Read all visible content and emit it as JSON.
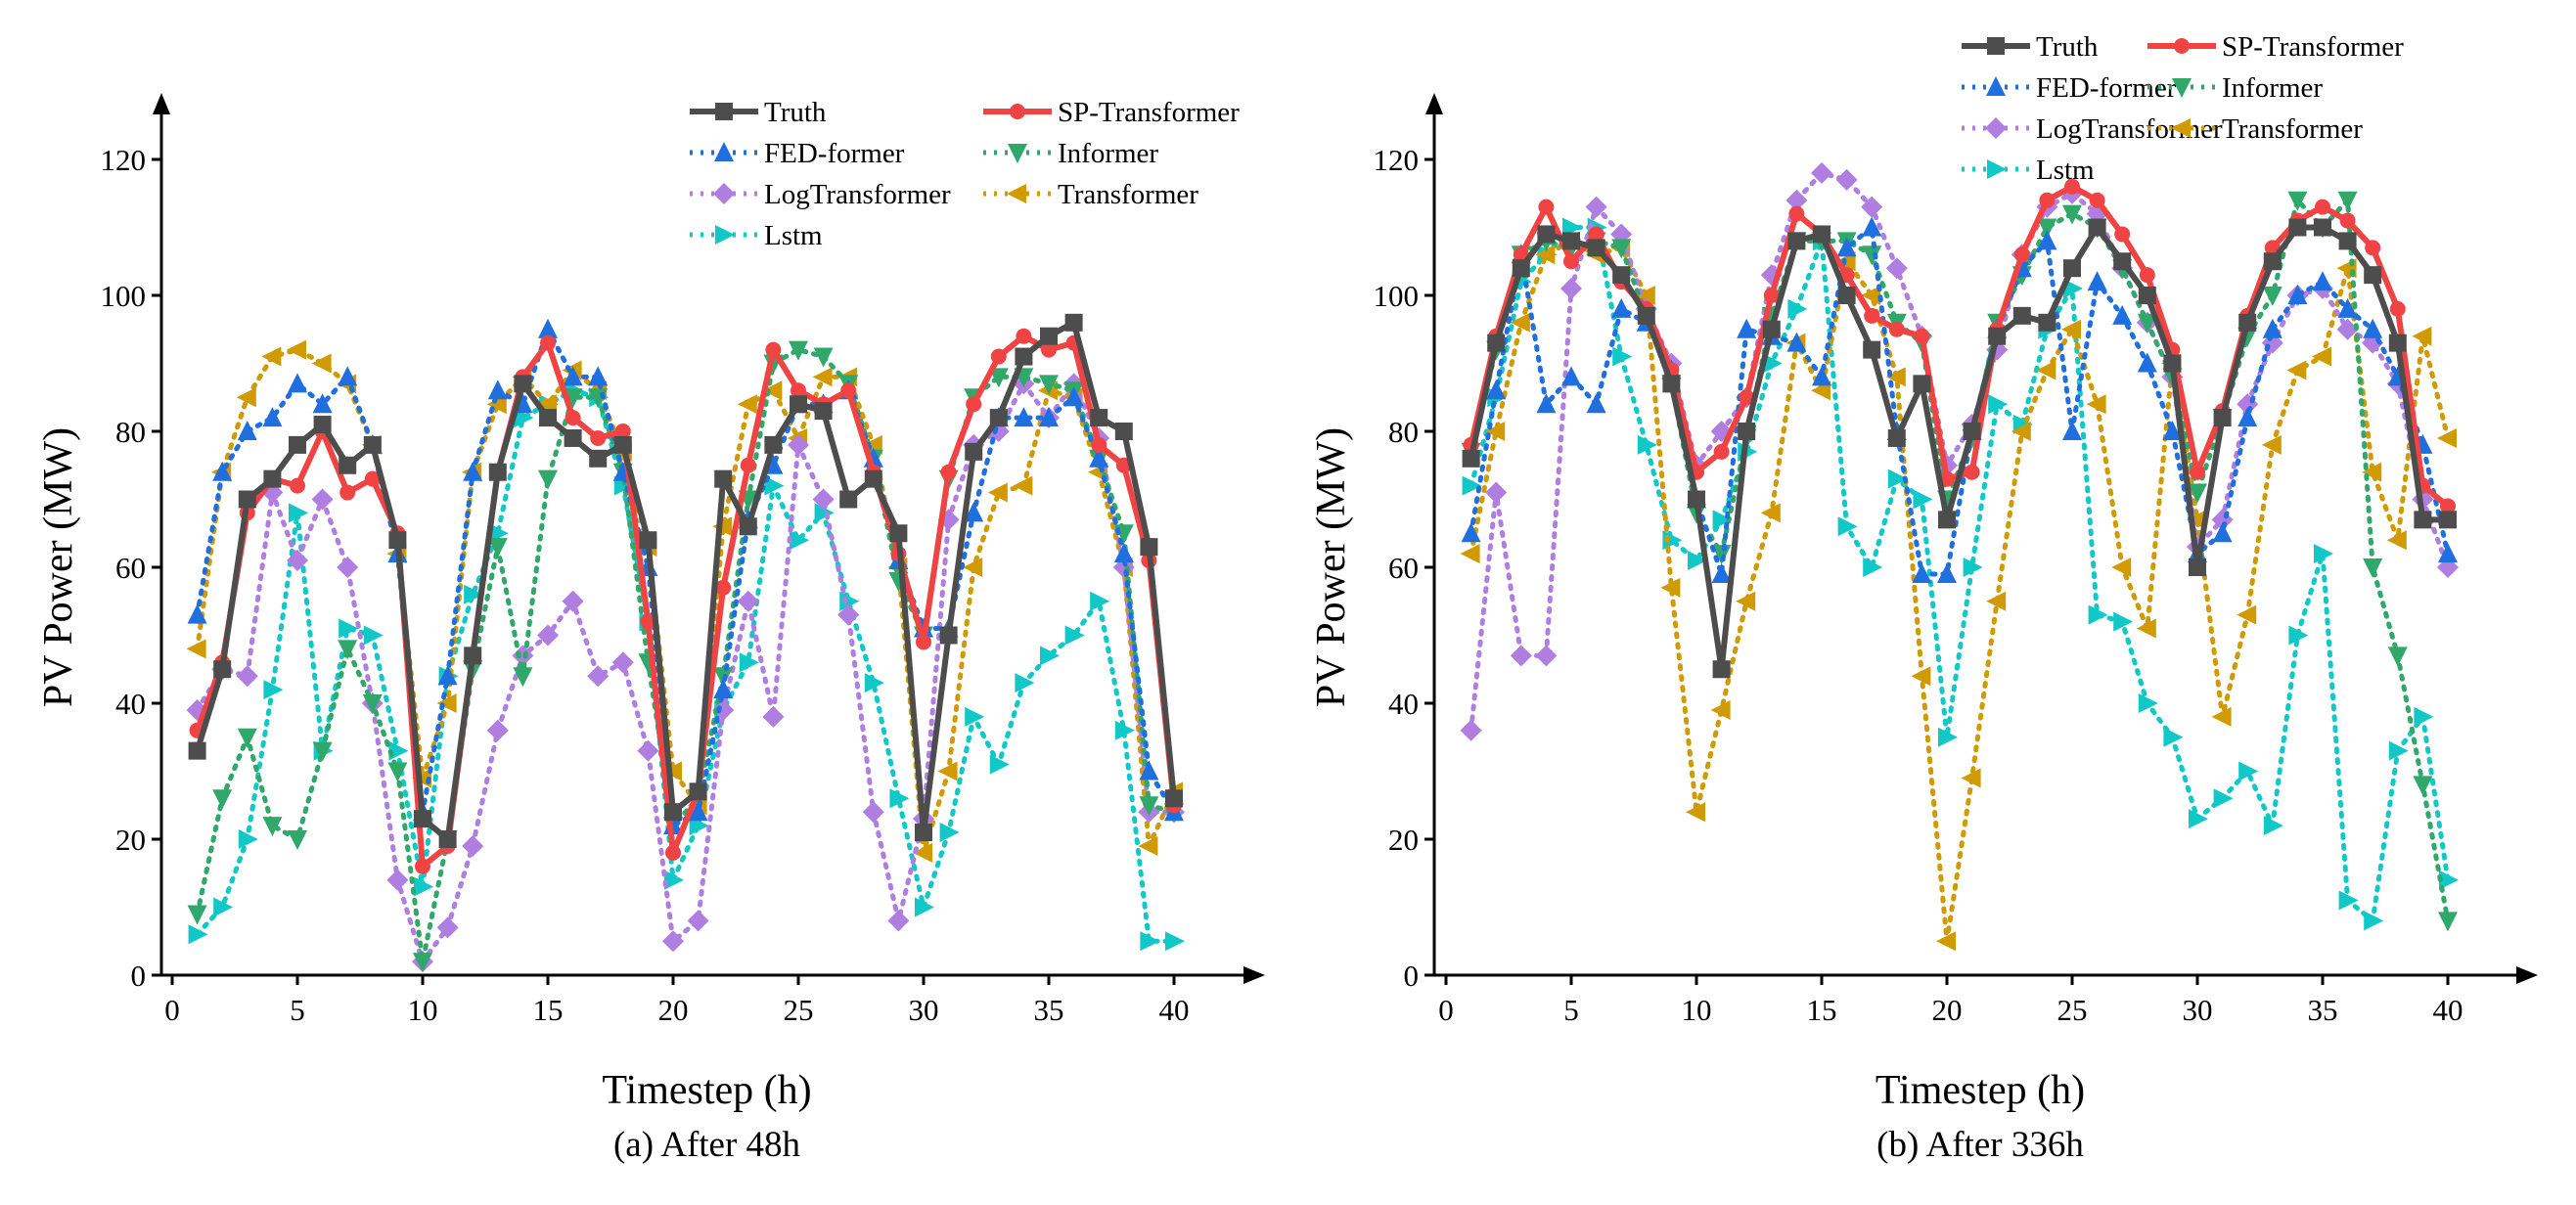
{
  "colors": {
    "Truth": "#4d4d4d",
    "SP-Transformer": "#f04444",
    "FED-former": "#1f6fdf",
    "Informer": "#2fa86a",
    "LogTransformer": "#b07de0",
    "Transformer": "#d09a00",
    "Lstm": "#10c8c8"
  },
  "chart_data": [
    {
      "type": "line",
      "title": "(a) After 48h",
      "xlabel": "Timestep (h)",
      "ylabel": "PV Power (MW)",
      "xlim": [
        0,
        40
      ],
      "ylim": [
        0,
        120
      ],
      "xticks": [
        0,
        5,
        10,
        15,
        20,
        25,
        30,
        35,
        40
      ],
      "yticks": [
        0,
        20,
        40,
        60,
        80,
        100,
        120
      ],
      "grid": false,
      "legend": "top-right",
      "legend_entries": [
        "Truth",
        "SP-Transformer",
        "FED-former",
        "Informer",
        "LogTransformer",
        "Transformer",
        "Lstm"
      ],
      "x": [
        1,
        2,
        3,
        4,
        5,
        6,
        7,
        8,
        9,
        10,
        11,
        12,
        13,
        14,
        15,
        16,
        17,
        18,
        19,
        20,
        21,
        22,
        23,
        24,
        25,
        26,
        27,
        28,
        29,
        30,
        31,
        32,
        33,
        34,
        35,
        36,
        37,
        38,
        39,
        40
      ],
      "series": [
        {
          "name": "Truth",
          "values": [
            33,
            45,
            70,
            73,
            78,
            81,
            75,
            78,
            64,
            23,
            20,
            47,
            74,
            87,
            82,
            79,
            76,
            78,
            64,
            24,
            27,
            73,
            66,
            78,
            84,
            83,
            70,
            73,
            65,
            21,
            50,
            77,
            82,
            91,
            94,
            96,
            82,
            80,
            63,
            26
          ]
        },
        {
          "name": "SP-Transformer",
          "values": [
            36,
            46,
            68,
            73,
            72,
            80,
            71,
            73,
            65,
            16,
            19,
            47,
            74,
            88,
            93,
            82,
            79,
            80,
            52,
            18,
            27,
            57,
            75,
            92,
            86,
            84,
            86,
            74,
            62,
            49,
            74,
            84,
            91,
            94,
            92,
            93,
            78,
            75,
            61,
            25
          ]
        },
        {
          "name": "FED-former",
          "values": [
            53,
            74,
            80,
            82,
            87,
            84,
            88,
            78,
            62,
            24,
            44,
            74,
            86,
            84,
            95,
            88,
            88,
            74,
            60,
            22,
            24,
            42,
            67,
            75,
            84,
            84,
            86,
            76,
            61,
            51,
            51,
            68,
            82,
            82,
            82,
            85,
            76,
            62,
            30,
            24
          ]
        },
        {
          "name": "Informer",
          "values": [
            9,
            26,
            35,
            22,
            20,
            33,
            48,
            40,
            30,
            2,
            20,
            45,
            63,
            44,
            73,
            85,
            85,
            74,
            46,
            22,
            26,
            44,
            70,
            90,
            92,
            91,
            87,
            76,
            58,
            50,
            73,
            85,
            88,
            88,
            87,
            86,
            76,
            65,
            25,
            24
          ]
        },
        {
          "name": "LogTransformer",
          "values": [
            39,
            45,
            44,
            71,
            61,
            70,
            60,
            40,
            14,
            2,
            7,
            19,
            36,
            47,
            50,
            55,
            44,
            46,
            33,
            5,
            8,
            39,
            55,
            38,
            78,
            70,
            53,
            24,
            8,
            23,
            67,
            78,
            80,
            87,
            82,
            87,
            79,
            60,
            24,
            24
          ]
        },
        {
          "name": "Transformer",
          "values": [
            48,
            74,
            85,
            91,
            92,
            90,
            87,
            78,
            62,
            29,
            40,
            74,
            84,
            88,
            84,
            89,
            86,
            77,
            63,
            30,
            25,
            66,
            84,
            86,
            79,
            88,
            88,
            78,
            60,
            18,
            30,
            60,
            71,
            72,
            86,
            85,
            74,
            60,
            19,
            27
          ]
        },
        {
          "name": "Lstm",
          "values": [
            6,
            10,
            20,
            42,
            68,
            33,
            51,
            50,
            33,
            13,
            44,
            56,
            65,
            82,
            84,
            86,
            85,
            72,
            52,
            14,
            22,
            39,
            46,
            72,
            64,
            68,
            55,
            43,
            26,
            10,
            21,
            38,
            31,
            43,
            47,
            50,
            55,
            36,
            5,
            5
          ]
        }
      ]
    },
    {
      "type": "line",
      "title": "(b) After 336h",
      "xlabel": "Timestep (h)",
      "ylabel": "PV Power (MW)",
      "xlim": [
        0,
        40
      ],
      "ylim": [
        0,
        120
      ],
      "xticks": [
        0,
        5,
        10,
        15,
        20,
        25,
        30,
        35,
        40
      ],
      "yticks": [
        0,
        20,
        40,
        60,
        80,
        100,
        120
      ],
      "grid": false,
      "legend": "top-right",
      "legend_entries": [
        "Truth",
        "SP-Transformer",
        "FED-former",
        "Informer",
        "LogTransformer",
        "Transformer",
        "Lstm"
      ],
      "x": [
        1,
        2,
        3,
        4,
        5,
        6,
        7,
        8,
        9,
        10,
        11,
        12,
        13,
        14,
        15,
        16,
        17,
        18,
        19,
        20,
        21,
        22,
        23,
        24,
        25,
        26,
        27,
        28,
        29,
        30,
        31,
        32,
        33,
        34,
        35,
        36,
        37,
        38,
        39,
        40
      ],
      "series": [
        {
          "name": "Truth",
          "values": [
            76,
            93,
            104,
            109,
            108,
            107,
            103,
            97,
            87,
            70,
            45,
            80,
            95,
            108,
            109,
            100,
            92,
            79,
            87,
            67,
            80,
            94,
            97,
            96,
            104,
            110,
            105,
            100,
            90,
            60,
            82,
            96,
            105,
            110,
            110,
            108,
            103,
            93,
            67,
            67
          ]
        },
        {
          "name": "SP-Transformer",
          "values": [
            78,
            94,
            106,
            113,
            105,
            109,
            102,
            98,
            89,
            74,
            77,
            85,
            100,
            112,
            109,
            103,
            97,
            95,
            94,
            73,
            74,
            95,
            106,
            114,
            116,
            114,
            109,
            103,
            92,
            74,
            83,
            97,
            107,
            111,
            113,
            111,
            107,
            98,
            72,
            69
          ]
        },
        {
          "name": "FED-former",
          "values": [
            65,
            86,
            106,
            84,
            88,
            84,
            98,
            96,
            89,
            70,
            59,
            95,
            94,
            93,
            88,
            107,
            110,
            80,
            59,
            59,
            80,
            95,
            104,
            108,
            80,
            102,
            97,
            90,
            80,
            62,
            65,
            82,
            95,
            100,
            102,
            98,
            95,
            88,
            78,
            62
          ]
        },
        {
          "name": "Informer",
          "values": [
            77,
            92,
            106,
            108,
            107,
            108,
            107,
            97,
            87,
            68,
            62,
            79,
            97,
            108,
            108,
            108,
            106,
            96,
            93,
            70,
            79,
            96,
            103,
            110,
            112,
            110,
            104,
            96,
            88,
            71,
            82,
            94,
            100,
            114,
            110,
            114,
            60,
            47,
            28,
            8
          ]
        },
        {
          "name": "LogTransformer",
          "values": [
            36,
            71,
            47,
            47,
            101,
            113,
            109,
            98,
            90,
            75,
            80,
            85,
            103,
            114,
            118,
            117,
            113,
            104,
            94,
            75,
            81,
            92,
            106,
            113,
            115,
            112,
            104,
            96,
            88,
            63,
            67,
            84,
            93,
            100,
            101,
            95,
            93,
            87,
            70,
            60
          ]
        },
        {
          "name": "Transformer",
          "values": [
            62,
            80,
            96,
            106,
            108,
            106,
            107,
            100,
            57,
            24,
            39,
            55,
            68,
            93,
            86,
            105,
            100,
            88,
            44,
            5,
            29,
            55,
            80,
            89,
            95,
            84,
            60,
            51,
            90,
            67,
            38,
            53,
            78,
            89,
            91,
            104,
            74,
            64,
            94,
            79
          ]
        },
        {
          "name": "Lstm",
          "values": [
            72,
            85,
            102,
            106,
            110,
            110,
            91,
            78,
            64,
            61,
            67,
            77,
            90,
            98,
            108,
            66,
            60,
            73,
            70,
            35,
            60,
            84,
            81,
            95,
            101,
            53,
            52,
            40,
            35,
            23,
            26,
            30,
            22,
            50,
            62,
            11,
            8,
            33,
            38,
            14
          ]
        }
      ]
    }
  ]
}
